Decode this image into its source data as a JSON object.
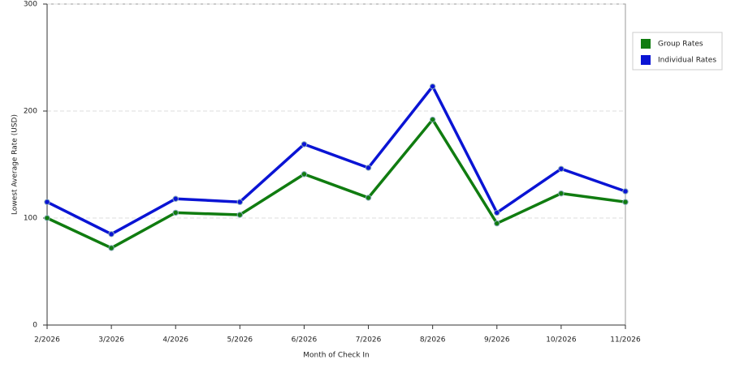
{
  "chart_data": {
    "type": "line",
    "x_label": "Month of Check In",
    "y_label": "Lowest Average Rate (USD)",
    "categories": [
      "2/2026",
      "3/2026",
      "4/2026",
      "5/2026",
      "6/2026",
      "7/2026",
      "8/2026",
      "9/2026",
      "10/2026",
      "11/2026"
    ],
    "series": [
      {
        "name": "Group Rates",
        "color": "#107c10",
        "values": [
          100,
          72,
          105,
          103,
          141,
          119,
          192,
          95,
          123,
          115
        ]
      },
      {
        "name": "Individual Rates",
        "color": "#0a14d4",
        "values": [
          115,
          85,
          118,
          115,
          169,
          147,
          223,
          105,
          146,
          125
        ]
      }
    ],
    "ylim": [
      0,
      300
    ],
    "yticks": [
      0,
      100,
      200,
      300
    ],
    "grid": true,
    "legend": "right"
  }
}
